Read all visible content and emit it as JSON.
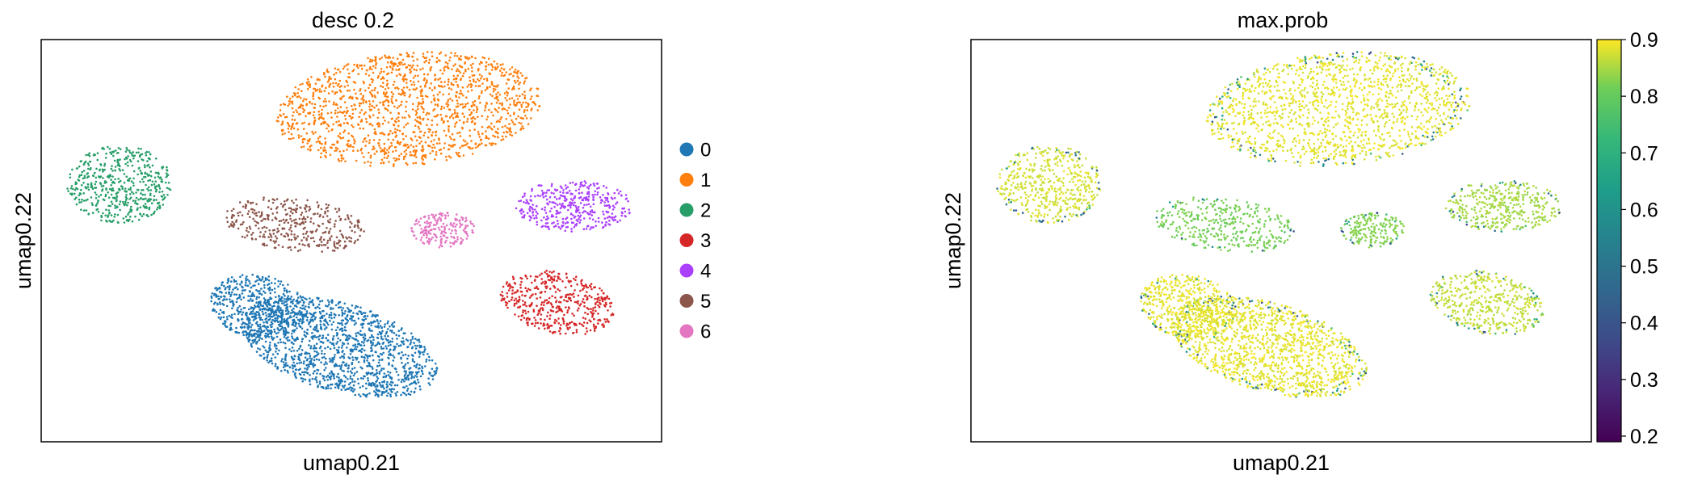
{
  "chart_data": [
    {
      "type": "scatter",
      "title": "desc 0.2",
      "xlabel": "umap0.21",
      "ylabel": "umap0.22",
      "color_by": "cluster",
      "legend_position": "right",
      "legend_title": "",
      "categories": [
        {
          "label": "0",
          "color": "#1f77b4"
        },
        {
          "label": "1",
          "color": "#ff7f0e"
        },
        {
          "label": "2",
          "color": "#279e68"
        },
        {
          "label": "3",
          "color": "#d62728"
        },
        {
          "label": "4",
          "color": "#aa40fc"
        },
        {
          "label": "5",
          "color": "#8c564b"
        },
        {
          "label": "6",
          "color": "#e377c2"
        }
      ],
      "axis_ticks": false,
      "grid": false
    },
    {
      "type": "scatter",
      "title": "max.prob",
      "xlabel": "umap0.21",
      "ylabel": "umap0.22",
      "color_by": "continuous",
      "colormap": "viridis",
      "colorbar_range": [
        0.19,
        0.9
      ],
      "colorbar_ticks": [
        "0.2",
        "0.3",
        "0.4",
        "0.5",
        "0.6",
        "0.7",
        "0.8",
        "0.9"
      ],
      "axis_ticks": false,
      "grid": false
    }
  ]
}
